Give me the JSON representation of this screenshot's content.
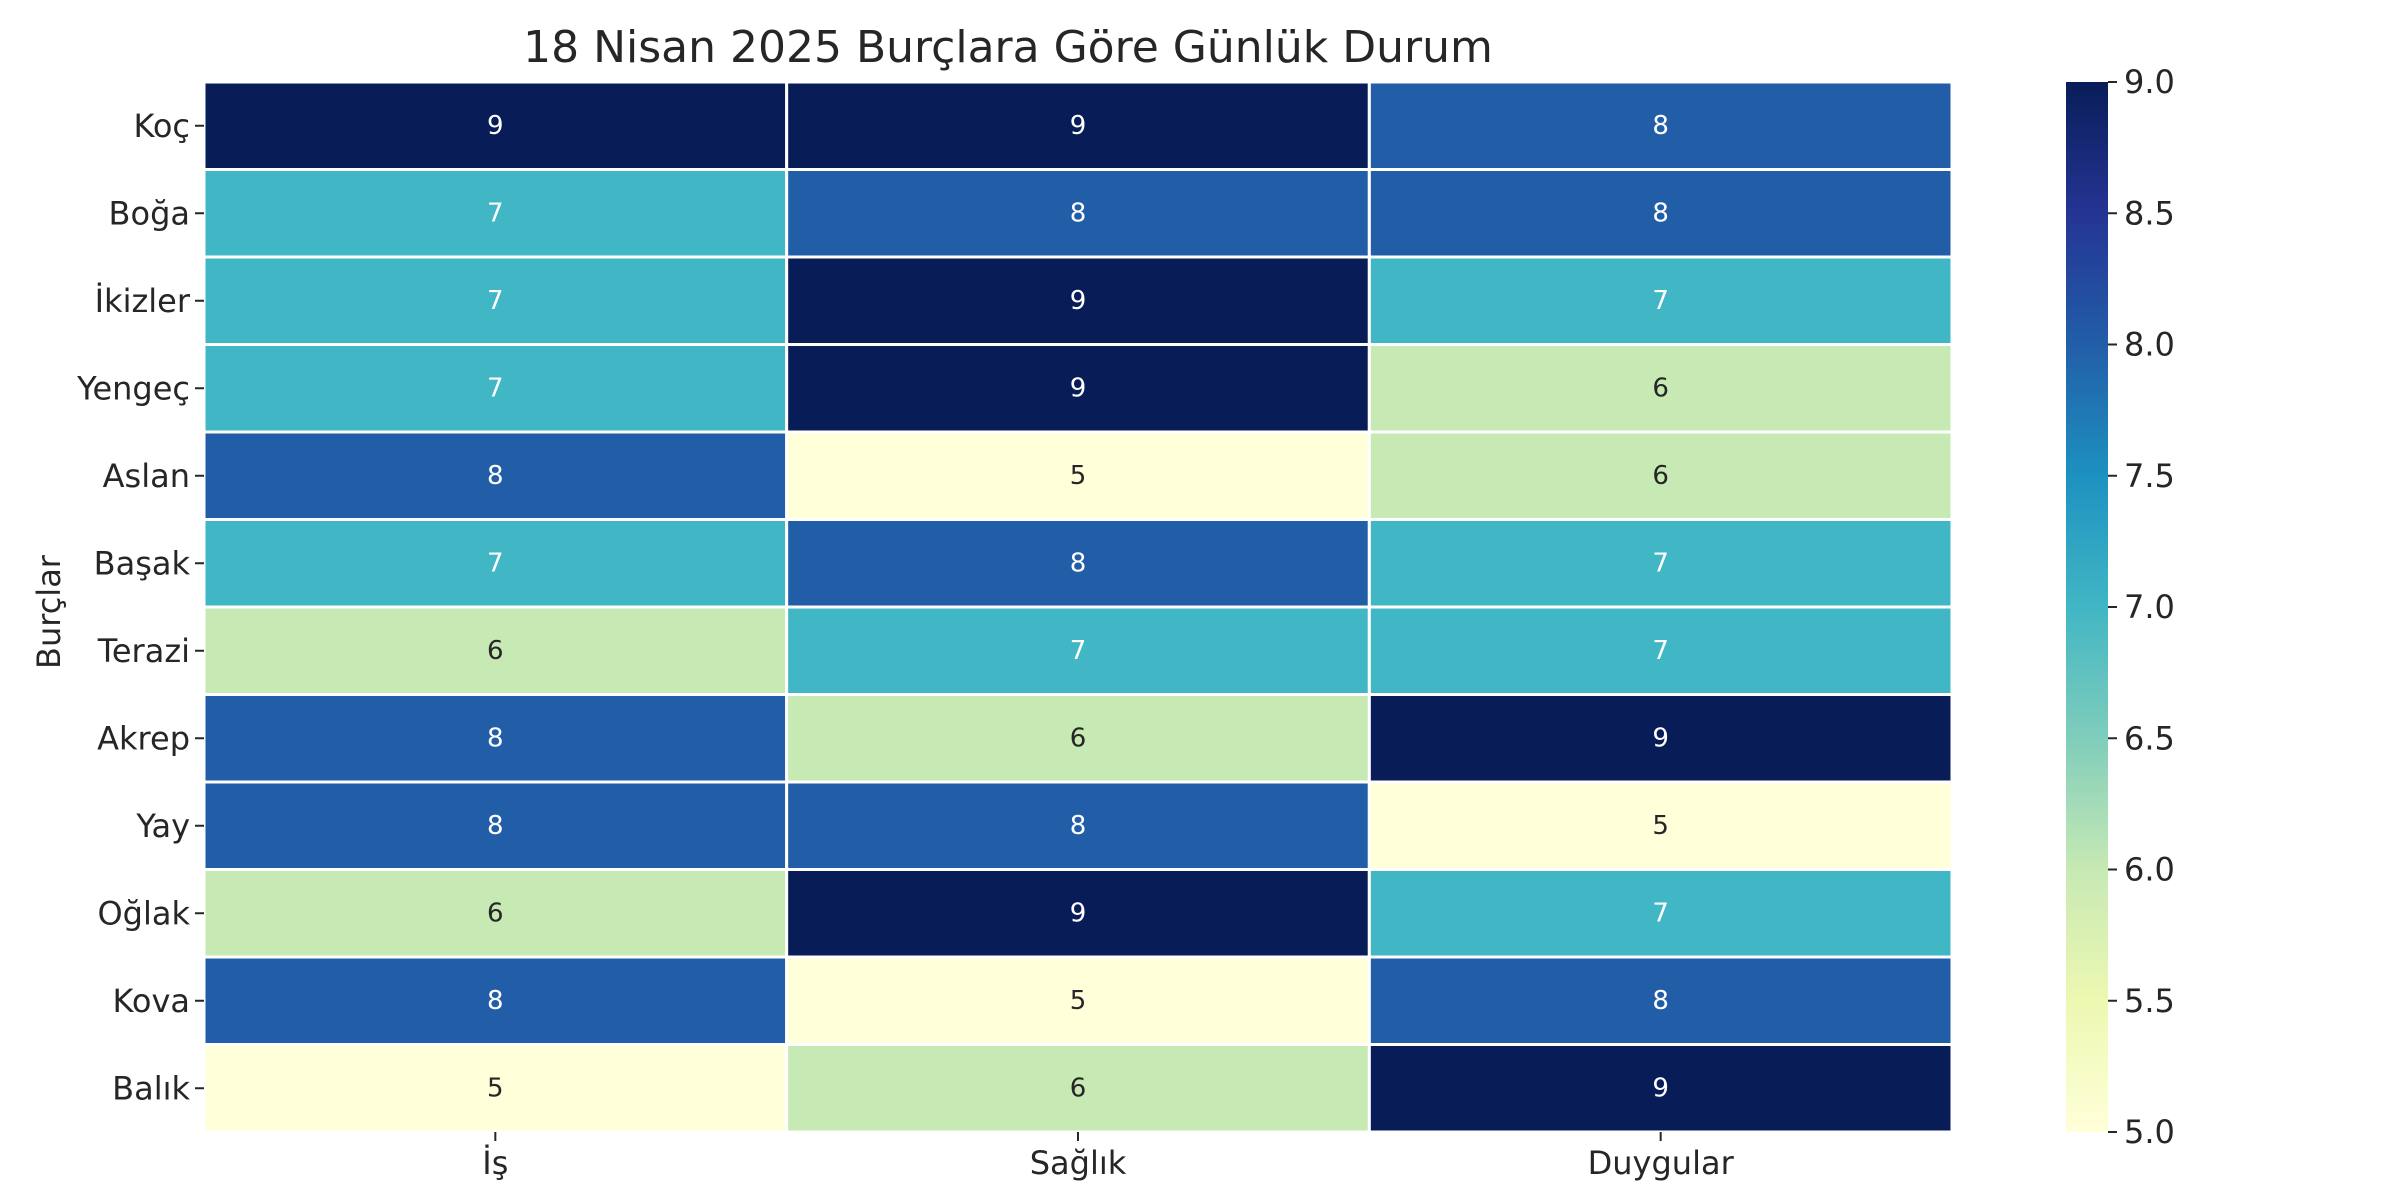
{
  "chart_data": {
    "type": "heatmap",
    "title": "18 Nisan 2025 Burçlara Göre Günlük Durum",
    "ylabel": "Burçlar",
    "xlabel": "",
    "columns": [
      "İş",
      "Sağlık",
      "Duygular"
    ],
    "rows": [
      "Koç",
      "Boğa",
      "İkizler",
      "Yengeç",
      "Aslan",
      "Başak",
      "Terazi",
      "Akrep",
      "Yay",
      "Oğlak",
      "Kova",
      "Balık"
    ],
    "values": [
      [
        9,
        9,
        8
      ],
      [
        7,
        8,
        8
      ],
      [
        7,
        9,
        7
      ],
      [
        7,
        9,
        6
      ],
      [
        8,
        5,
        6
      ],
      [
        7,
        8,
        7
      ],
      [
        6,
        7,
        7
      ],
      [
        8,
        6,
        9
      ],
      [
        8,
        8,
        5
      ],
      [
        6,
        9,
        7
      ],
      [
        8,
        5,
        8
      ],
      [
        5,
        6,
        9
      ]
    ],
    "colorbar": {
      "min": 5.0,
      "max": 9.0,
      "ticks": [
        "5.0",
        "5.5",
        "6.0",
        "6.5",
        "7.0",
        "7.5",
        "8.0",
        "8.5",
        "9.0"
      ],
      "colormap": "YlGnBu"
    },
    "annotations": true,
    "grid": false
  }
}
